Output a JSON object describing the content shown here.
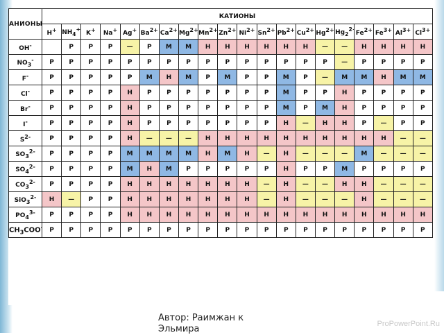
{
  "header": {
    "corner": "АНИОНЫ",
    "title": "КАТИОНЫ"
  },
  "cations": [
    {
      "base": "H",
      "sup": "+"
    },
    {
      "base": "NH",
      "sub": "4",
      "sup": "+"
    },
    {
      "base": "K",
      "sup": "+"
    },
    {
      "base": "Na",
      "sup": "+"
    },
    {
      "base": "Ag",
      "sup": "+"
    },
    {
      "base": "Ba",
      "sup": "2+"
    },
    {
      "base": "Ca",
      "sup": "2+"
    },
    {
      "base": "Mg",
      "sup": "2+"
    },
    {
      "base": "Mn",
      "sup": "2+"
    },
    {
      "base": "Zn",
      "sup": "2+"
    },
    {
      "base": "Ni",
      "sup": "2+"
    },
    {
      "base": "Sn",
      "sup": "2+"
    },
    {
      "base": "Pb",
      "sup": "2+"
    },
    {
      "base": "Cu",
      "sup": "2+"
    },
    {
      "base": "Hg",
      "sup": "2+"
    },
    {
      "base": "Hg",
      "sub": "2",
      "sup": "2+"
    },
    {
      "base": "Fe",
      "sup": "2+"
    },
    {
      "base": "Fe",
      "sup": "3+"
    },
    {
      "base": "Al",
      "sup": "3+"
    },
    {
      "base": "Cl",
      "sup": "3+"
    }
  ],
  "rows": [
    {
      "base": "OH",
      "sup": "-",
      "cells": [
        "E",
        "R",
        "R",
        "R",
        "D",
        "R",
        "M",
        "M",
        "N",
        "N",
        "N",
        "N",
        "N",
        "N",
        "D",
        "D",
        "N",
        "N",
        "N",
        "N"
      ]
    },
    {
      "base": "NO",
      "sub": "3",
      "sup": "-",
      "cells": [
        "R",
        "R",
        "R",
        "R",
        "R",
        "R",
        "R",
        "R",
        "R",
        "R",
        "R",
        "R",
        "R",
        "R",
        "R",
        "D",
        "R",
        "R",
        "R",
        "R"
      ]
    },
    {
      "base": "F",
      "sup": "-",
      "cells": [
        "R",
        "R",
        "R",
        "R",
        "R",
        "M",
        "N",
        "M",
        "R",
        "M",
        "R",
        "R",
        "M",
        "R",
        "D",
        "M",
        "M",
        "N",
        "M",
        "M"
      ]
    },
    {
      "base": "Cl",
      "sup": "-",
      "cells": [
        "R",
        "R",
        "R",
        "R",
        "N",
        "R",
        "R",
        "R",
        "R",
        "R",
        "R",
        "R",
        "M",
        "R",
        "R",
        "N",
        "R",
        "R",
        "R",
        "R"
      ]
    },
    {
      "base": "Br",
      "sup": "-",
      "cells": [
        "R",
        "R",
        "R",
        "R",
        "N",
        "R",
        "R",
        "R",
        "R",
        "R",
        "R",
        "R",
        "M",
        "R",
        "M",
        "N",
        "R",
        "R",
        "R",
        "R"
      ]
    },
    {
      "base": "I",
      "sup": "-",
      "cells": [
        "R",
        "R",
        "R",
        "R",
        "N",
        "R",
        "R",
        "R",
        "R",
        "R",
        "R",
        "R",
        "N",
        "D",
        "N",
        "N",
        "R",
        "D",
        "R",
        "R"
      ]
    },
    {
      "base": "S",
      "sup": "2-",
      "cells": [
        "R",
        "R",
        "R",
        "R",
        "N",
        "D",
        "D",
        "D",
        "N",
        "N",
        "N",
        "N",
        "N",
        "N",
        "N",
        "N",
        "N",
        "N",
        "D",
        "D"
      ]
    },
    {
      "base": "SO",
      "sub": "3",
      "sup": "2-",
      "cells": [
        "R",
        "R",
        "R",
        "R",
        "M",
        "M",
        "M",
        "M",
        "N",
        "M",
        "N",
        "D",
        "N",
        "D",
        "D",
        "D",
        "M",
        "D",
        "D",
        "D"
      ]
    },
    {
      "base": "SO",
      "sub": "4",
      "sup": "2-",
      "cells": [
        "R",
        "R",
        "R",
        "R",
        "M",
        "N",
        "M",
        "R",
        "R",
        "R",
        "R",
        "R",
        "N",
        "R",
        "R",
        "M",
        "R",
        "R",
        "R",
        "R"
      ]
    },
    {
      "base": "CO",
      "sub": "3",
      "sup": "2-",
      "cells": [
        "R",
        "R",
        "R",
        "R",
        "N",
        "N",
        "N",
        "N",
        "N",
        "N",
        "N",
        "D",
        "N",
        "D",
        "D",
        "N",
        "N",
        "D",
        "D",
        "D"
      ]
    },
    {
      "base": "SiO",
      "sub": "3",
      "sup": "2-",
      "cells": [
        "N",
        "D",
        "R",
        "R",
        "N",
        "N",
        "N",
        "N",
        "N",
        "N",
        "N",
        "D",
        "N",
        "D",
        "D",
        "D",
        "N",
        "D",
        "D",
        "D"
      ]
    },
    {
      "base": "PO",
      "sub": "4",
      "sup": "3-",
      "cells": [
        "R",
        "R",
        "R",
        "R",
        "N",
        "N",
        "N",
        "N",
        "N",
        "N",
        "N",
        "N",
        "N",
        "N",
        "N",
        "N",
        "N",
        "N",
        "N",
        "N"
      ]
    },
    {
      "base": "CH",
      "sub": "3",
      "mid": "COO",
      "sup": "-",
      "cells": [
        "R",
        "R",
        "R",
        "R",
        "R",
        "R",
        "R",
        "R",
        "R",
        "R",
        "R",
        "R",
        "R",
        "R",
        "R",
        "R",
        "R",
        "R",
        "R",
        "R"
      ]
    }
  ],
  "symbols": {
    "R": "Р",
    "N": "Н",
    "M": "М",
    "D": "—",
    "E": ""
  },
  "footer": {
    "author": "Автор: Раимжан к Эльмира",
    "brand": "ProPowerPoint.Ru"
  }
}
